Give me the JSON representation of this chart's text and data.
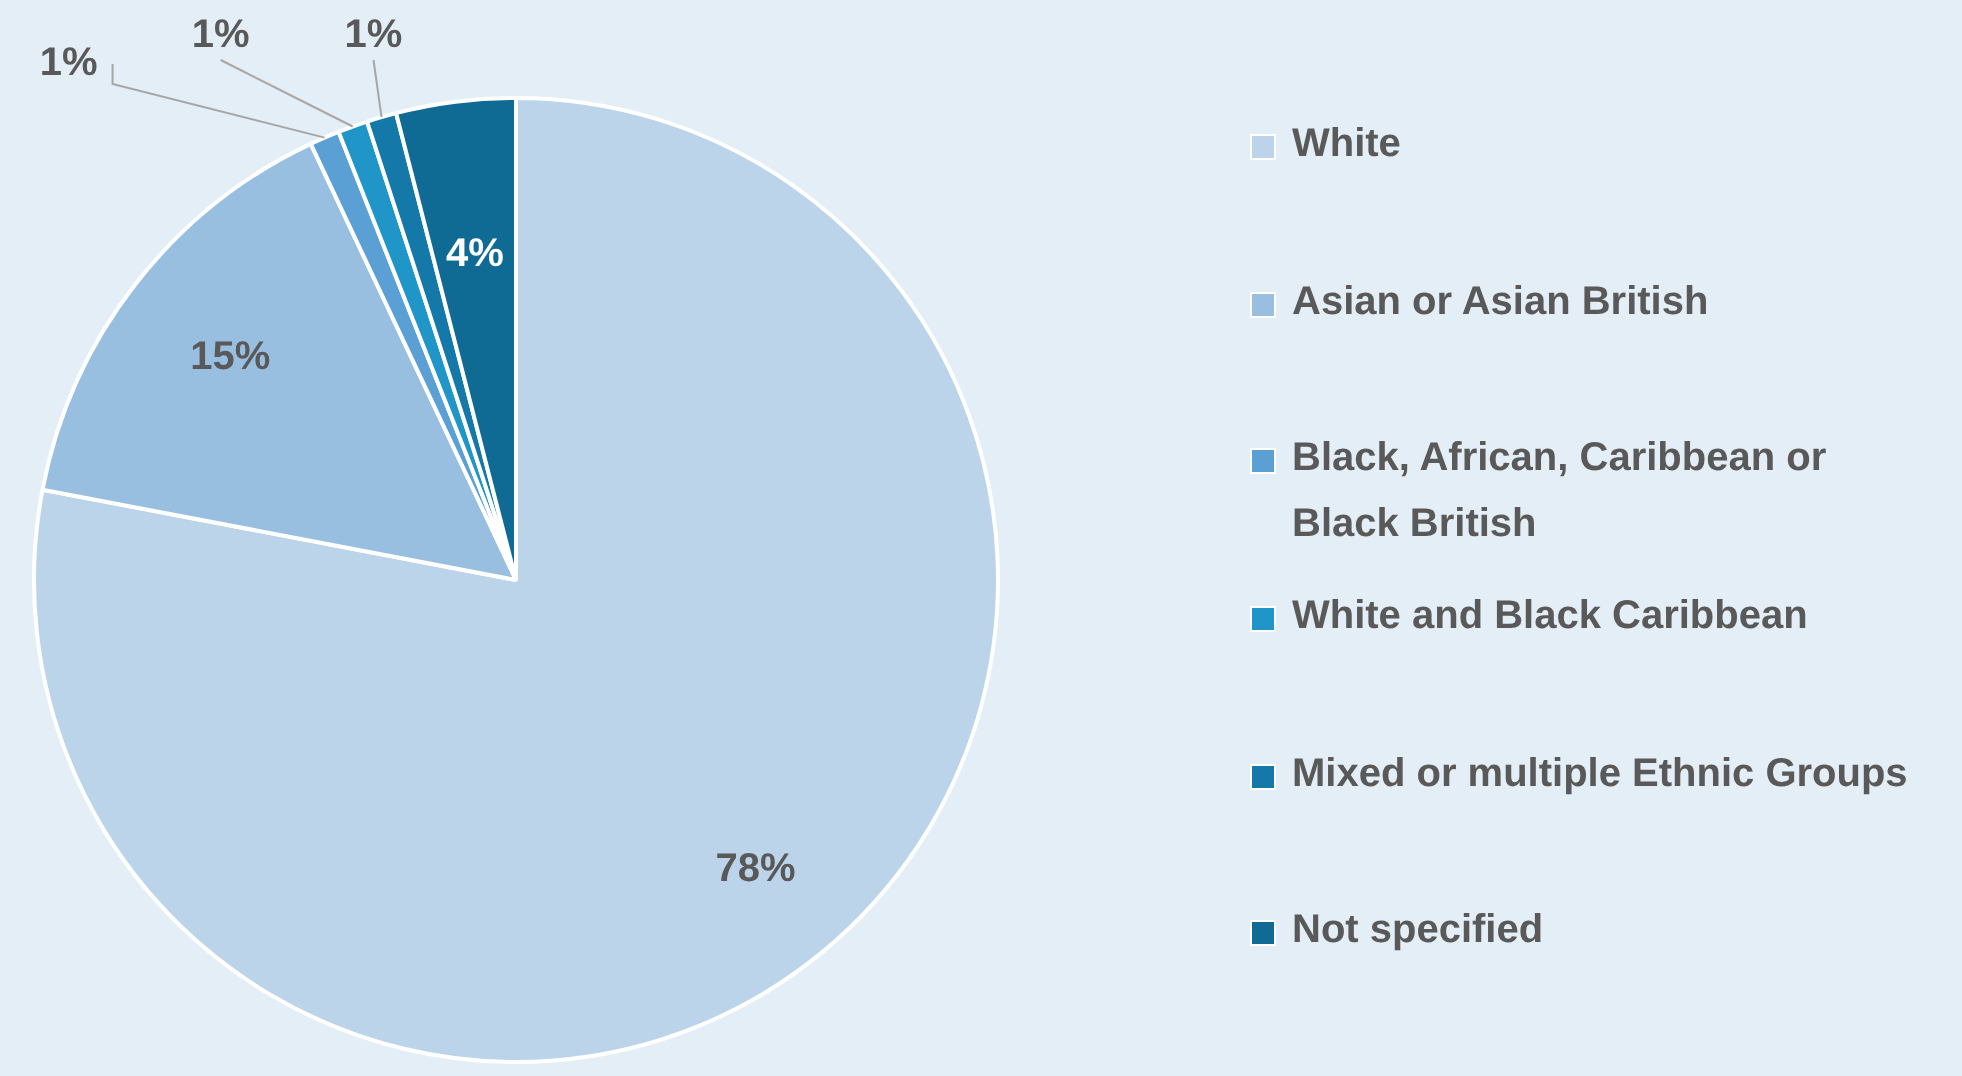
{
  "chart_data": {
    "type": "pie",
    "categories": [
      "White",
      "Asian or Asian British",
      "Black, African, Caribbean or Black British",
      "White and Black Caribbean",
      "Mixed or multiple Ethnic Groups",
      "Not specified"
    ],
    "values": [
      78,
      15,
      1,
      1,
      1,
      4
    ],
    "colors": [
      "#bcd4ea",
      "#98bfe0",
      "#5aa0d4",
      "#1f95c8",
      "#1479a8",
      "#0f6a94"
    ],
    "value_labels": [
      "78%",
      "15%",
      "1%",
      "1%",
      "1%",
      "4%"
    ],
    "legend": "right"
  }
}
